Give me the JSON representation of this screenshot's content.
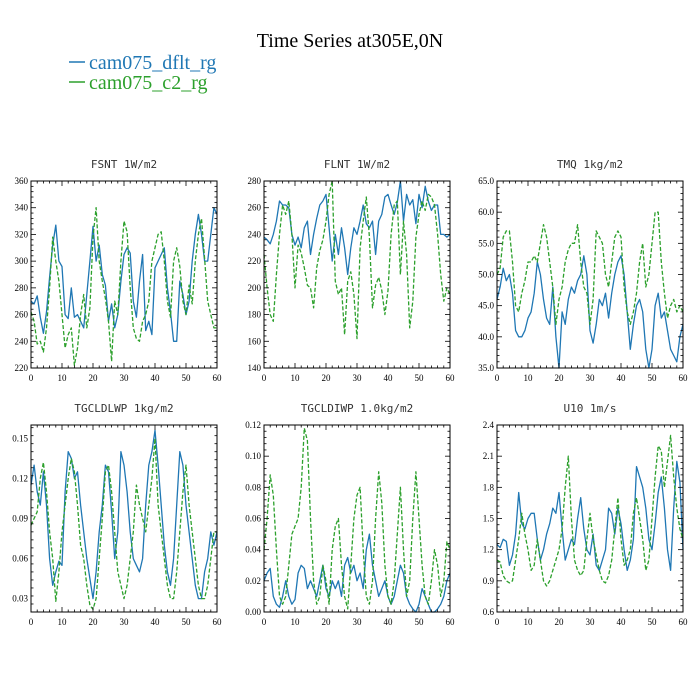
{
  "page": {
    "title": "Time Series at305E,0N",
    "legend": [
      {
        "label": "cam075_dflt_rg",
        "color": "#1f77b4"
      },
      {
        "label": "cam075_c2_rg",
        "color": "#2ca02c"
      }
    ]
  },
  "chart_data": [
    {
      "type": "line",
      "title": "FSNT   1W/m2",
      "xlim": [
        0,
        60
      ],
      "ylim": [
        220,
        360
      ],
      "xticks": [
        0,
        10,
        20,
        30,
        40,
        50,
        60
      ],
      "yticks": [
        220,
        240,
        260,
        280,
        300,
        320,
        340,
        360
      ],
      "ytick_labels": [
        "220",
        "240",
        "260",
        "280",
        "300",
        "320",
        "340",
        "360"
      ],
      "series": [
        {
          "name": "cam075_dflt_rg",
          "color": "#1f77b4",
          "values": [
            270,
            268,
            274,
            258,
            246,
            262,
            288,
            312,
            327,
            300,
            296,
            260,
            257,
            280,
            258,
            260,
            255,
            250,
            275,
            300,
            326,
            300,
            312,
            290,
            282,
            255,
            268,
            250,
            260,
            285,
            305,
            310,
            306,
            270,
            258,
            285,
            305,
            248,
            255,
            245,
            295,
            300,
            305,
            310,
            280,
            262,
            240,
            240,
            285,
            275,
            260,
            270,
            300,
            320,
            335,
            320,
            300,
            300,
            320,
            340,
            335
          ]
        },
        {
          "name": "cam075_c2_rg",
          "color": "#2ca02c",
          "dash": "4,2",
          "values": [
            262,
            255,
            238,
            240,
            232,
            250,
            280,
            318,
            300,
            285,
            260,
            235,
            245,
            250,
            222,
            235,
            260,
            275,
            250,
            265,
            318,
            340,
            300,
            285,
            272,
            255,
            225,
            270,
            260,
            300,
            330,
            322,
            280,
            250,
            242,
            240,
            255,
            260,
            270,
            300,
            310,
            320,
            322,
            300,
            270,
            258,
            300,
            310,
            296,
            270,
            260,
            282,
            268,
            300,
            320,
            332,
            302,
            270,
            260,
            250,
            250
          ]
        }
      ]
    },
    {
      "type": "line",
      "title": "FLNT   1W/m2",
      "xlim": [
        0,
        60
      ],
      "ylim": [
        140,
        280
      ],
      "xticks": [
        0,
        10,
        20,
        30,
        40,
        50,
        60
      ],
      "yticks": [
        140,
        160,
        180,
        200,
        220,
        240,
        260,
        280
      ],
      "ytick_labels": [
        "140",
        "160",
        "180",
        "200",
        "220",
        "240",
        "260",
        "280"
      ],
      "series": [
        {
          "name": "cam075_dflt_rg",
          "color": "#1f77b4",
          "values": [
            238,
            236,
            233,
            240,
            250,
            265,
            262,
            262,
            260,
            240,
            232,
            238,
            230,
            245,
            250,
            225,
            240,
            252,
            262,
            265,
            270,
            245,
            220,
            240,
            225,
            245,
            230,
            210,
            230,
            245,
            240,
            250,
            262,
            248,
            245,
            250,
            225,
            250,
            255,
            268,
            270,
            262,
            255,
            264,
            280,
            250,
            270,
            262,
            266,
            248,
            270,
            260,
            276,
            265,
            258,
            262,
            262,
            240,
            240,
            238,
            240
          ]
        },
        {
          "name": "cam075_c2_rg",
          "color": "#2ca02c",
          "dash": "4,2",
          "values": [
            225,
            200,
            180,
            175,
            210,
            240,
            262,
            255,
            265,
            240,
            200,
            232,
            226,
            215,
            202,
            200,
            185,
            215,
            228,
            236,
            250,
            270,
            280,
            205,
            195,
            200,
            165,
            205,
            212,
            195,
            162,
            230,
            250,
            268,
            238,
            185,
            202,
            208,
            198,
            180,
            198,
            240,
            262,
            265,
            210,
            250,
            225,
            170,
            190,
            238,
            255,
            265,
            258,
            270,
            268,
            262,
            240,
            210,
            190,
            200,
            195
          ]
        }
      ]
    },
    {
      "type": "line",
      "title": "TMQ   1kg/m2",
      "xlim": [
        0,
        60
      ],
      "ylim": [
        35,
        65
      ],
      "xticks": [
        0,
        10,
        20,
        30,
        40,
        50,
        60
      ],
      "yticks": [
        35,
        40,
        45,
        50,
        55,
        60,
        65
      ],
      "ytick_labels": [
        "35.0",
        "40.0",
        "45.0",
        "50.0",
        "55.0",
        "60.0",
        "65.0"
      ],
      "series": [
        {
          "name": "cam075_dflt_rg",
          "color": "#1f77b4",
          "values": [
            46,
            48,
            51,
            49,
            50,
            47,
            41,
            40,
            40,
            41,
            43,
            44,
            47,
            52,
            50,
            46,
            43,
            42,
            48,
            40,
            35,
            44,
            42,
            46,
            48,
            47,
            49,
            50,
            53,
            50,
            41,
            39,
            42,
            46,
            45,
            47,
            43,
            47,
            50,
            52,
            53,
            50,
            44,
            38,
            42,
            45,
            46,
            44,
            38,
            35,
            38,
            45,
            47,
            43,
            44,
            41,
            38,
            37,
            36,
            40,
            42
          ]
        },
        {
          "name": "cam075_c2_rg",
          "color": "#2ca02c",
          "dash": "4,2",
          "values": [
            50,
            51,
            56,
            57,
            57,
            52,
            45,
            44,
            47,
            49,
            52,
            52,
            53,
            52,
            55,
            58,
            56,
            52,
            48,
            42,
            46,
            48,
            52,
            54,
            55,
            55,
            58,
            52,
            48,
            47,
            42,
            46,
            57,
            56,
            55,
            50,
            48,
            52,
            56,
            57,
            56,
            48,
            44,
            42,
            44,
            47,
            52,
            55,
            48,
            50,
            55,
            60,
            60,
            52,
            47,
            43,
            45,
            46,
            44,
            45,
            44
          ]
        }
      ]
    },
    {
      "type": "line",
      "title": "TGCLDLWP   1kg/m2",
      "xlim": [
        0,
        60
      ],
      "ylim": [
        0.02,
        0.16
      ],
      "xticks": [
        0,
        10,
        20,
        30,
        40,
        50,
        60
      ],
      "yticks": [
        0.03,
        0.06,
        0.09,
        0.12,
        0.15
      ],
      "ytick_labels": [
        "0.03",
        "0.06",
        "0.09",
        "0.12",
        "0.15"
      ],
      "series": [
        {
          "name": "cam075_dflt_rg",
          "color": "#1f77b4",
          "values": [
            0.115,
            0.13,
            0.11,
            0.1,
            0.125,
            0.1,
            0.06,
            0.04,
            0.05,
            0.058,
            0.055,
            0.11,
            0.14,
            0.135,
            0.12,
            0.125,
            0.1,
            0.08,
            0.06,
            0.045,
            0.03,
            0.05,
            0.08,
            0.1,
            0.13,
            0.125,
            0.095,
            0.06,
            0.08,
            0.14,
            0.13,
            0.11,
            0.08,
            0.06,
            0.055,
            0.05,
            0.06,
            0.1,
            0.13,
            0.14,
            0.156,
            0.13,
            0.1,
            0.07,
            0.05,
            0.04,
            0.06,
            0.1,
            0.14,
            0.13,
            0.1,
            0.08,
            0.06,
            0.04,
            0.03,
            0.03,
            0.05,
            0.06,
            0.08,
            0.07,
            0.08
          ]
        },
        {
          "name": "cam075_c2_rg",
          "color": "#2ca02c",
          "dash": "4,2",
          "values": [
            0.085,
            0.09,
            0.095,
            0.12,
            0.132,
            0.11,
            0.08,
            0.06,
            0.028,
            0.05,
            0.08,
            0.1,
            0.12,
            0.135,
            0.125,
            0.1,
            0.07,
            0.06,
            0.04,
            0.025,
            0.022,
            0.03,
            0.06,
            0.09,
            0.125,
            0.13,
            0.11,
            0.08,
            0.05,
            0.04,
            0.03,
            0.04,
            0.06,
            0.08,
            0.115,
            0.1,
            0.09,
            0.08,
            0.1,
            0.12,
            0.15,
            0.1,
            0.08,
            0.06,
            0.04,
            0.03,
            0.03,
            0.05,
            0.08,
            0.11,
            0.13,
            0.1,
            0.08,
            0.06,
            0.04,
            0.03,
            0.03,
            0.04,
            0.06,
            0.08,
            0.08
          ]
        }
      ]
    },
    {
      "type": "line",
      "title": "TGCLDIWP   1.0kg/m2",
      "xlim": [
        0,
        60
      ],
      "ylim": [
        0.0,
        0.12
      ],
      "xticks": [
        0,
        10,
        20,
        30,
        40,
        50,
        60
      ],
      "yticks": [
        0.0,
        0.02,
        0.04,
        0.06,
        0.08,
        0.1,
        0.12
      ],
      "ytick_labels": [
        "0.00",
        "0.02",
        "0.04",
        "0.06",
        "0.08",
        "0.10",
        "0.12"
      ],
      "series": [
        {
          "name": "cam075_dflt_rg",
          "color": "#1f77b4",
          "values": [
            0.02,
            0.025,
            0.028,
            0.01,
            0.005,
            0.003,
            0.01,
            0.02,
            0.01,
            0.005,
            0.008,
            0.025,
            0.03,
            0.028,
            0.015,
            0.02,
            0.015,
            0.01,
            0.02,
            0.03,
            0.015,
            0.01,
            0.02,
            0.015,
            0.02,
            0.01,
            0.03,
            0.035,
            0.025,
            0.03,
            0.02,
            0.025,
            0.015,
            0.04,
            0.05,
            0.03,
            0.02,
            0.01,
            0.015,
            0.02,
            0.01,
            0.005,
            0.01,
            0.02,
            0.03,
            0.025,
            0.01,
            0.005,
            0.002,
            0.0,
            0.005,
            0.015,
            0.01,
            0.005,
            0.0,
            0.0,
            0.002,
            0.005,
            0.01,
            0.02,
            0.025
          ]
        },
        {
          "name": "cam075_c2_rg",
          "color": "#2ca02c",
          "dash": "4,2",
          "values": [
            0.04,
            0.06,
            0.088,
            0.075,
            0.04,
            0.01,
            0.005,
            0.01,
            0.03,
            0.05,
            0.055,
            0.06,
            0.08,
            0.118,
            0.11,
            0.06,
            0.02,
            0.005,
            0.01,
            0.03,
            0.02,
            0.005,
            0.04,
            0.055,
            0.06,
            0.03,
            0.01,
            0.002,
            0.03,
            0.06,
            0.075,
            0.08,
            0.04,
            0.01,
            0.005,
            0.02,
            0.06,
            0.09,
            0.07,
            0.03,
            0.01,
            0.005,
            0.02,
            0.05,
            0.08,
            0.04,
            0.01,
            0.02,
            0.06,
            0.09,
            0.06,
            0.03,
            0.01,
            0.005,
            0.02,
            0.04,
            0.03,
            0.01,
            0.02,
            0.045,
            0.04
          ]
        }
      ]
    },
    {
      "type": "line",
      "title": "U10   1m/s",
      "xlim": [
        0,
        60
      ],
      "ylim": [
        0.6,
        2.4
      ],
      "xticks": [
        0,
        10,
        20,
        30,
        40,
        50,
        60
      ],
      "yticks": [
        0.6,
        0.9,
        1.2,
        1.5,
        1.8,
        2.1,
        2.4
      ],
      "ytick_labels": [
        "0.6",
        "0.9",
        "1.2",
        "1.5",
        "1.8",
        "2.1",
        "2.4"
      ],
      "series": [
        {
          "name": "cam075_dflt_rg",
          "color": "#1f77b4",
          "values": [
            1.25,
            1.22,
            1.3,
            1.28,
            1.05,
            1.15,
            1.35,
            1.75,
            1.45,
            1.4,
            1.5,
            1.55,
            1.55,
            1.3,
            1.1,
            1.2,
            1.35,
            1.45,
            1.6,
            1.55,
            1.75,
            1.4,
            1.1,
            1.2,
            1.3,
            1.25,
            1.5,
            1.7,
            1.4,
            1.2,
            1.15,
            1.35,
            1.05,
            1.0,
            1.1,
            1.2,
            1.6,
            1.55,
            1.35,
            1.6,
            1.45,
            1.2,
            1.0,
            1.1,
            1.3,
            2.0,
            1.9,
            1.8,
            1.6,
            1.3,
            1.2,
            1.45,
            1.75,
            1.9,
            1.6,
            1.2,
            1.0,
            1.6,
            2.05,
            1.85,
            1.2
          ]
        },
        {
          "name": "cam075_c2_rg",
          "color": "#2ca02c",
          "dash": "4,2",
          "values": [
            1.1,
            1.08,
            0.95,
            0.9,
            0.88,
            0.9,
            1.1,
            1.3,
            1.55,
            1.35,
            1.2,
            1.0,
            1.05,
            1.3,
            1.1,
            0.9,
            0.85,
            0.9,
            1.0,
            1.1,
            1.2,
            1.4,
            1.8,
            2.1,
            1.5,
            1.1,
            1.0,
            0.95,
            1.0,
            1.3,
            1.55,
            1.3,
            1.15,
            1.0,
            0.9,
            0.88,
            0.95,
            1.1,
            1.4,
            1.7,
            1.3,
            1.05,
            1.1,
            1.2,
            1.55,
            1.7,
            1.5,
            1.3,
            1.0,
            1.1,
            1.5,
            1.9,
            2.2,
            2.15,
            1.8,
            2.05,
            2.3,
            1.9,
            1.6,
            1.4,
            1.3
          ]
        }
      ]
    }
  ]
}
